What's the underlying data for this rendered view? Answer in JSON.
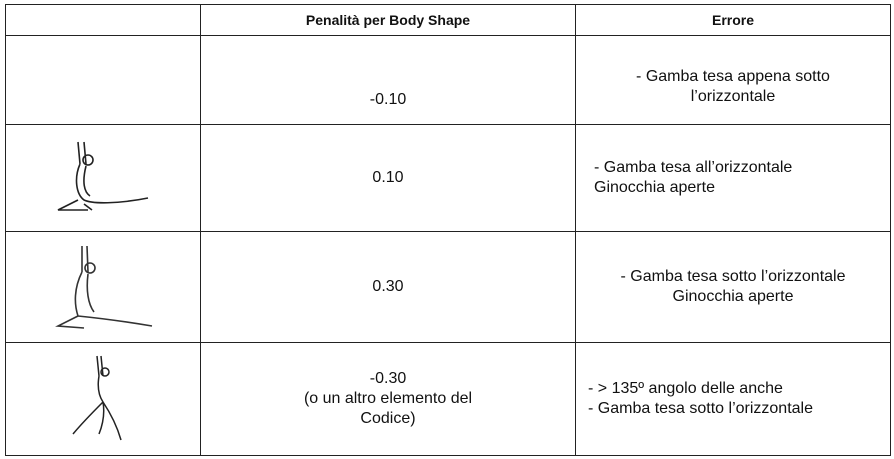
{
  "table": {
    "header": {
      "penalty": "Penalità per Body Shape",
      "error": "Errore"
    },
    "rows": [
      {
        "penalty": [
          "-0.10"
        ],
        "error": [
          "- Gamba tesa appena sotto",
          "l’orizzontale"
        ]
      },
      {
        "penalty": [
          "0.10"
        ],
        "error": [
          "- Gamba tesa all’orizzontale",
          "Ginocchia aperte"
        ]
      },
      {
        "penalty": [
          "0.30"
        ],
        "error": [
          "- Gamba tesa sotto l’orizzontale",
          "Ginocchia aperte"
        ]
      },
      {
        "penalty": [
          "-0.30",
          "(o un altro elemento del",
          "Codice)"
        ],
        "error": [
          "- > 135º angolo delle anche",
          "- Gamba tesa sotto l’orizzontale"
        ]
      }
    ]
  }
}
